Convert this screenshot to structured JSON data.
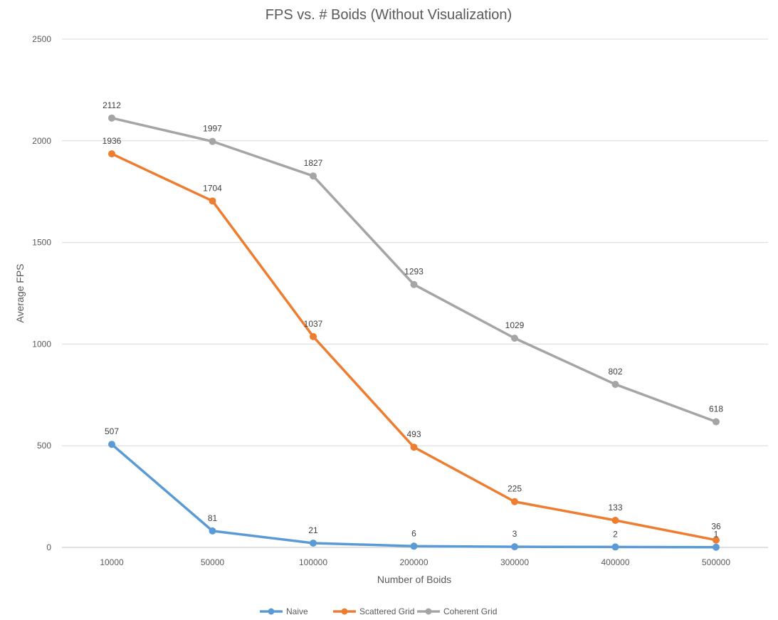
{
  "chart_data": {
    "type": "line",
    "title": "FPS vs. # Boids (Without Visualization)",
    "xlabel": "Number of Boids",
    "ylabel": "Average FPS",
    "categories": [
      "10000",
      "50000",
      "100000",
      "200000",
      "300000",
      "400000",
      "500000"
    ],
    "ylim": [
      0,
      2500
    ],
    "yticks": [
      0,
      500,
      1000,
      1500,
      2000,
      2500
    ],
    "grid": true,
    "legend_position": "bottom",
    "series": [
      {
        "name": "Naive",
        "color": "#5B9BD5",
        "values": [
          507,
          81,
          21,
          6,
          3,
          2,
          1
        ]
      },
      {
        "name": "Scattered Grid",
        "color": "#ED7D31",
        "values": [
          1936,
          1704,
          1037,
          493,
          225,
          133,
          36
        ]
      },
      {
        "name": "Coherent Grid",
        "color": "#A5A5A5",
        "values": [
          2112,
          1997,
          1827,
          1293,
          1029,
          802,
          618
        ]
      }
    ]
  }
}
